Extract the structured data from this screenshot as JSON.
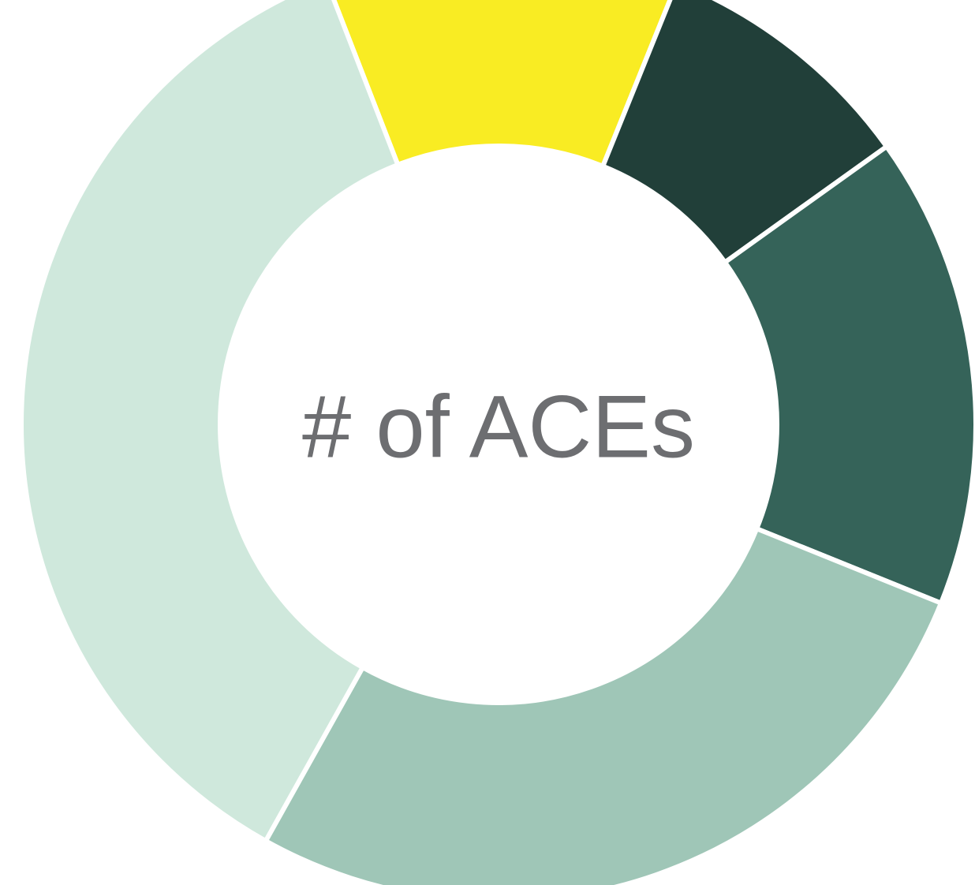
{
  "chart_data": {
    "type": "donut",
    "title": "# of ACEs",
    "values": [
      12,
      9,
      16,
      27,
      36
    ],
    "colors": [
      "#f9ec23",
      "#213f39",
      "#356359",
      "#9fc6b7",
      "#cfe8dc"
    ]
  }
}
